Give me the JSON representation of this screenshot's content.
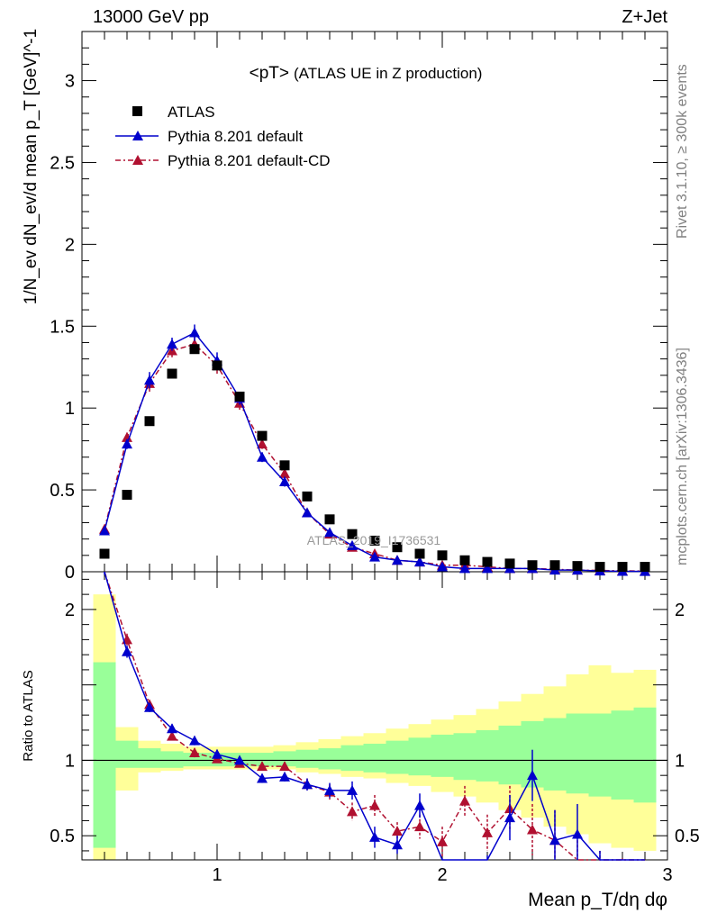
{
  "header": {
    "left": "13000 GeV pp",
    "right": "Z+Jet"
  },
  "side_labels": {
    "top": "Rivet 3.1.10, ≥ 300k events",
    "bottom": "mcplots.cern.ch [arXiv:1306.3436]"
  },
  "watermark": "ATLAS_2019_I1736531",
  "chart_data": {
    "type": "scatter",
    "title_main": "<pT>",
    "title_sub": "(ATLAS UE in Z production)",
    "xlabel": "Mean p_T/dη dφ",
    "ylabel": "1/N_ev dN_ev/d mean p_T [GeV]^-1",
    "ratio_ylabel": "Ratio to ATLAS",
    "xlim": [
      0.4,
      3.0
    ],
    "ylim": [
      0,
      3.3
    ],
    "ratio_ylim": [
      0.34,
      2.25
    ],
    "x_ticks": [
      "1",
      "2",
      "3"
    ],
    "y_ticks": [
      "0",
      "0.5",
      "1",
      "1.5",
      "2",
      "2.5",
      "3"
    ],
    "ratio_ticks": [
      "0.5",
      "1",
      "2"
    ],
    "legend": [
      "ATLAS",
      "Pythia 8.201 default",
      "Pythia 8.201 default-CD"
    ],
    "colors": {
      "data": "#000000",
      "default": "#0000cc",
      "cd": "#b01030",
      "band_inner": "#99ff99",
      "band_outer": "#ffff99"
    },
    "x": [
      0.5,
      0.6,
      0.7,
      0.8,
      0.9,
      1.0,
      1.1,
      1.2,
      1.3,
      1.4,
      1.5,
      1.6,
      1.7,
      1.8,
      1.9,
      2.0,
      2.1,
      2.2,
      2.3,
      2.4,
      2.5,
      2.6,
      2.7,
      2.8,
      2.9
    ],
    "series": [
      {
        "name": "ATLAS",
        "values": [
          0.11,
          0.47,
          0.92,
          1.21,
          1.36,
          1.26,
          1.07,
          0.83,
          0.65,
          0.46,
          0.32,
          0.23,
          0.19,
          0.15,
          0.11,
          0.1,
          0.07,
          0.06,
          0.05,
          0.04,
          0.04,
          0.035,
          0.03,
          0.03,
          0.03
        ]
      },
      {
        "name": "Pythia 8.201 default",
        "values": [
          0.25,
          0.78,
          1.17,
          1.39,
          1.46,
          1.29,
          1.06,
          0.7,
          0.55,
          0.36,
          0.24,
          0.16,
          0.09,
          0.07,
          0.06,
          0.03,
          0.02,
          0.02,
          0.02,
          0.02,
          0.01,
          0.01,
          0.005,
          0.003,
          0.002
        ],
        "errors": [
          0.02,
          0.03,
          0.05,
          0.04,
          0.05,
          0.05,
          0.04,
          0.03,
          0.03,
          0.02,
          0.02,
          0.02,
          0.01,
          0.01,
          0.01,
          0.01,
          0.01,
          0.01,
          0.01,
          0.01,
          0.01,
          0.01,
          0.005,
          0.003,
          0.002
        ]
      },
      {
        "name": "Pythia 8.201 default-CD",
        "values": [
          0.26,
          0.82,
          1.15,
          1.35,
          1.39,
          1.26,
          1.03,
          0.78,
          0.6,
          0.36,
          0.23,
          0.15,
          0.11,
          0.07,
          0.06,
          0.04,
          0.04,
          0.03,
          0.02,
          0.02,
          0.015,
          0.01,
          0.008,
          0.006,
          0.004
        ],
        "errors": [
          0.02,
          0.03,
          0.05,
          0.04,
          0.05,
          0.05,
          0.04,
          0.03,
          0.03,
          0.02,
          0.02,
          0.02,
          0.01,
          0.01,
          0.01,
          0.01,
          0.01,
          0.01,
          0.01,
          0.01,
          0.01,
          0.01,
          0.005,
          0.003,
          0.002
        ]
      }
    ],
    "ratio_series": [
      {
        "name": "Pythia 8.201 default",
        "values": [
          2.28,
          1.72,
          1.35,
          1.21,
          1.13,
          1.04,
          1.0,
          0.88,
          0.89,
          0.84,
          0.8,
          0.8,
          0.49,
          0.44,
          0.7,
          0.25,
          0.22,
          0.25,
          0.62,
          0.9,
          0.47,
          0.51,
          0.2,
          0.12,
          0.08
        ],
        "errors": [
          0.05,
          0.04,
          0.03,
          0.03,
          0.03,
          0.03,
          0.02,
          0.03,
          0.03,
          0.04,
          0.05,
          0.06,
          0.07,
          0.06,
          0.08,
          0.1,
          0.1,
          0.12,
          0.15,
          0.17,
          0.2,
          0.2,
          0.2,
          0.2,
          0.2
        ]
      },
      {
        "name": "Pythia 8.201 default-CD",
        "values": [
          2.36,
          1.8,
          1.37,
          1.16,
          1.05,
          1.01,
          0.98,
          0.96,
          0.96,
          0.84,
          0.79,
          0.66,
          0.7,
          0.53,
          0.56,
          0.46,
          0.73,
          0.52,
          0.68,
          0.54,
          0.47,
          0.3,
          0.2,
          0.15,
          0.1
        ],
        "errors": [
          0.05,
          0.04,
          0.03,
          0.03,
          0.03,
          0.03,
          0.02,
          0.03,
          0.03,
          0.04,
          0.05,
          0.06,
          0.07,
          0.06,
          0.08,
          0.1,
          0.1,
          0.12,
          0.15,
          0.17,
          0.2,
          0.2,
          0.2,
          0.2,
          0.2
        ]
      }
    ],
    "bands": {
      "inner_up": [
        1.65,
        1.13,
        1.08,
        1.06,
        1.05,
        1.05,
        1.05,
        1.05,
        1.06,
        1.07,
        1.08,
        1.1,
        1.11,
        1.13,
        1.15,
        1.17,
        1.18,
        1.2,
        1.23,
        1.26,
        1.28,
        1.31,
        1.31,
        1.33,
        1.35
      ],
      "inner_dn": [
        0.42,
        0.95,
        0.95,
        0.95,
        0.96,
        0.96,
        0.96,
        0.96,
        0.96,
        0.95,
        0.94,
        0.93,
        0.92,
        0.91,
        0.9,
        0.89,
        0.87,
        0.86,
        0.84,
        0.82,
        0.8,
        0.78,
        0.76,
        0.74,
        0.72
      ],
      "outer_up": [
        2.1,
        1.22,
        1.13,
        1.11,
        1.09,
        1.09,
        1.09,
        1.09,
        1.1,
        1.12,
        1.14,
        1.16,
        1.18,
        1.21,
        1.24,
        1.27,
        1.3,
        1.34,
        1.39,
        1.44,
        1.49,
        1.57,
        1.63,
        1.58,
        1.6
      ],
      "outer_dn": [
        0.34,
        0.8,
        0.92,
        0.93,
        0.94,
        0.94,
        0.94,
        0.94,
        0.94,
        0.92,
        0.91,
        0.89,
        0.88,
        0.85,
        0.83,
        0.79,
        0.76,
        0.72,
        0.67,
        0.62,
        0.56,
        0.51,
        0.45,
        0.42,
        0.4
      ]
    }
  }
}
